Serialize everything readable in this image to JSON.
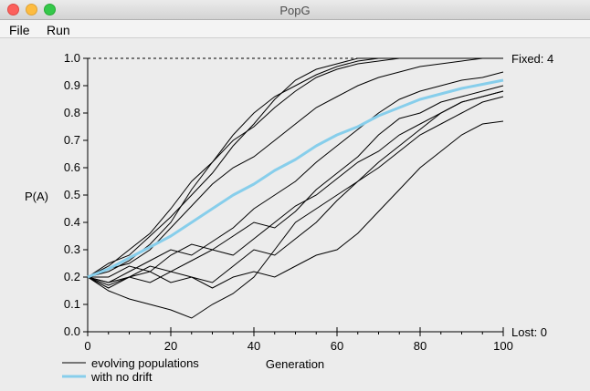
{
  "window": {
    "title": "PopG"
  },
  "menu": {
    "file": "File",
    "run": "Run"
  },
  "chart_data": {
    "type": "line",
    "ylabel": "P(A)",
    "xlabel": "Generation",
    "xlim": [
      0,
      100
    ],
    "ylim": [
      0,
      1
    ],
    "x_ticks": [
      0,
      20,
      40,
      60,
      80,
      100
    ],
    "y_ticks": [
      "0.0",
      "0.1",
      "0.2",
      "0.3",
      "0.4",
      "0.5",
      "0.6",
      "0.7",
      "0.8",
      "0.9",
      "1.0"
    ],
    "fixed_label": "Fixed: 4",
    "lost_label": "Lost: 0",
    "legend": {
      "evolving": "evolving populations",
      "nodrift": "with no drift"
    },
    "colors": {
      "evolving": "#000000",
      "nodrift": "#87ceeb"
    },
    "no_drift": {
      "x": [
        0,
        5,
        10,
        15,
        20,
        25,
        30,
        35,
        40,
        45,
        50,
        55,
        60,
        65,
        70,
        75,
        80,
        85,
        90,
        95,
        100
      ],
      "y": [
        0.2,
        0.23,
        0.27,
        0.31,
        0.35,
        0.4,
        0.45,
        0.5,
        0.54,
        0.59,
        0.63,
        0.68,
        0.72,
        0.75,
        0.79,
        0.82,
        0.85,
        0.87,
        0.89,
        0.905,
        0.92
      ]
    },
    "populations": [
      {
        "x": [
          0,
          5,
          10,
          15,
          20,
          25,
          30,
          35,
          40,
          45,
          50,
          55,
          60,
          65,
          70,
          75,
          80,
          85,
          90,
          95,
          100
        ],
        "y": [
          0.2,
          0.24,
          0.3,
          0.36,
          0.45,
          0.55,
          0.62,
          0.72,
          0.8,
          0.86,
          0.9,
          0.94,
          0.97,
          0.99,
          1.0,
          1.0,
          1.0,
          1.0,
          1.0,
          1.0,
          1.0
        ]
      },
      {
        "x": [
          0,
          5,
          10,
          15,
          20,
          25,
          30,
          35,
          40,
          45,
          50,
          55,
          60,
          65,
          70,
          75,
          80,
          85,
          90,
          95,
          100
        ],
        "y": [
          0.2,
          0.25,
          0.28,
          0.35,
          0.42,
          0.5,
          0.58,
          0.68,
          0.76,
          0.85,
          0.92,
          0.96,
          0.98,
          1.0,
          1.0,
          1.0,
          1.0,
          1.0,
          1.0,
          1.0,
          1.0
        ]
      },
      {
        "x": [
          0,
          5,
          10,
          15,
          20,
          25,
          30,
          35,
          40,
          45,
          50,
          55,
          60,
          65,
          70,
          75,
          80,
          85,
          90,
          95,
          100
        ],
        "y": [
          0.2,
          0.22,
          0.26,
          0.32,
          0.4,
          0.52,
          0.62,
          0.7,
          0.75,
          0.82,
          0.88,
          0.93,
          0.96,
          0.98,
          0.99,
          1.0,
          1.0,
          1.0,
          1.0,
          1.0,
          1.0
        ]
      },
      {
        "x": [
          0,
          5,
          10,
          15,
          20,
          25,
          30,
          35,
          40,
          45,
          50,
          55,
          60,
          65,
          70,
          75,
          80,
          85,
          90,
          95,
          100
        ],
        "y": [
          0.2,
          0.23,
          0.25,
          0.3,
          0.38,
          0.46,
          0.54,
          0.6,
          0.64,
          0.7,
          0.76,
          0.82,
          0.86,
          0.9,
          0.93,
          0.95,
          0.97,
          0.98,
          0.99,
          1.0,
          1.0
        ]
      },
      {
        "x": [
          0,
          5,
          10,
          15,
          20,
          25,
          30,
          35,
          40,
          45,
          50,
          55,
          60,
          65,
          70,
          75,
          80,
          85,
          90,
          95,
          100
        ],
        "y": [
          0.2,
          0.18,
          0.22,
          0.26,
          0.3,
          0.28,
          0.33,
          0.38,
          0.45,
          0.5,
          0.55,
          0.62,
          0.68,
          0.74,
          0.8,
          0.85,
          0.88,
          0.9,
          0.92,
          0.93,
          0.95
        ]
      },
      {
        "x": [
          0,
          5,
          10,
          15,
          20,
          25,
          30,
          35,
          40,
          45,
          50,
          55,
          60,
          65,
          70,
          75,
          80,
          85,
          90,
          95,
          100
        ],
        "y": [
          0.2,
          0.2,
          0.24,
          0.22,
          0.28,
          0.32,
          0.3,
          0.35,
          0.4,
          0.38,
          0.44,
          0.52,
          0.58,
          0.64,
          0.72,
          0.78,
          0.8,
          0.84,
          0.86,
          0.88,
          0.9
        ]
      },
      {
        "x": [
          0,
          5,
          10,
          15,
          20,
          25,
          30,
          35,
          40,
          45,
          50,
          55,
          60,
          65,
          70,
          75,
          80,
          85,
          90,
          95,
          100
        ],
        "y": [
          0.2,
          0.17,
          0.2,
          0.24,
          0.22,
          0.26,
          0.3,
          0.28,
          0.34,
          0.4,
          0.46,
          0.5,
          0.56,
          0.62,
          0.66,
          0.72,
          0.76,
          0.8,
          0.84,
          0.86,
          0.88
        ]
      },
      {
        "x": [
          0,
          5,
          10,
          15,
          20,
          25,
          30,
          35,
          40,
          45,
          50,
          55,
          60,
          65,
          70,
          75,
          80,
          85,
          90,
          95,
          100
        ],
        "y": [
          0.2,
          0.15,
          0.12,
          0.1,
          0.08,
          0.05,
          0.1,
          0.14,
          0.2,
          0.3,
          0.4,
          0.45,
          0.5,
          0.55,
          0.62,
          0.68,
          0.74,
          0.8,
          0.84,
          0.86,
          0.88
        ]
      },
      {
        "x": [
          0,
          5,
          10,
          15,
          20,
          25,
          30,
          35,
          40,
          45,
          50,
          55,
          60,
          65,
          70,
          75,
          80,
          85,
          90,
          95,
          100
        ],
        "y": [
          0.2,
          0.16,
          0.2,
          0.18,
          0.22,
          0.2,
          0.18,
          0.24,
          0.3,
          0.28,
          0.34,
          0.4,
          0.48,
          0.55,
          0.6,
          0.66,
          0.72,
          0.76,
          0.8,
          0.84,
          0.86
        ]
      },
      {
        "x": [
          0,
          5,
          10,
          15,
          20,
          25,
          30,
          35,
          40,
          45,
          50,
          55,
          60,
          65,
          70,
          75,
          80,
          85,
          90,
          95,
          100
        ],
        "y": [
          0.2,
          0.18,
          0.2,
          0.22,
          0.18,
          0.2,
          0.16,
          0.2,
          0.22,
          0.2,
          0.24,
          0.28,
          0.3,
          0.36,
          0.44,
          0.52,
          0.6,
          0.66,
          0.72,
          0.76,
          0.77
        ]
      }
    ]
  }
}
